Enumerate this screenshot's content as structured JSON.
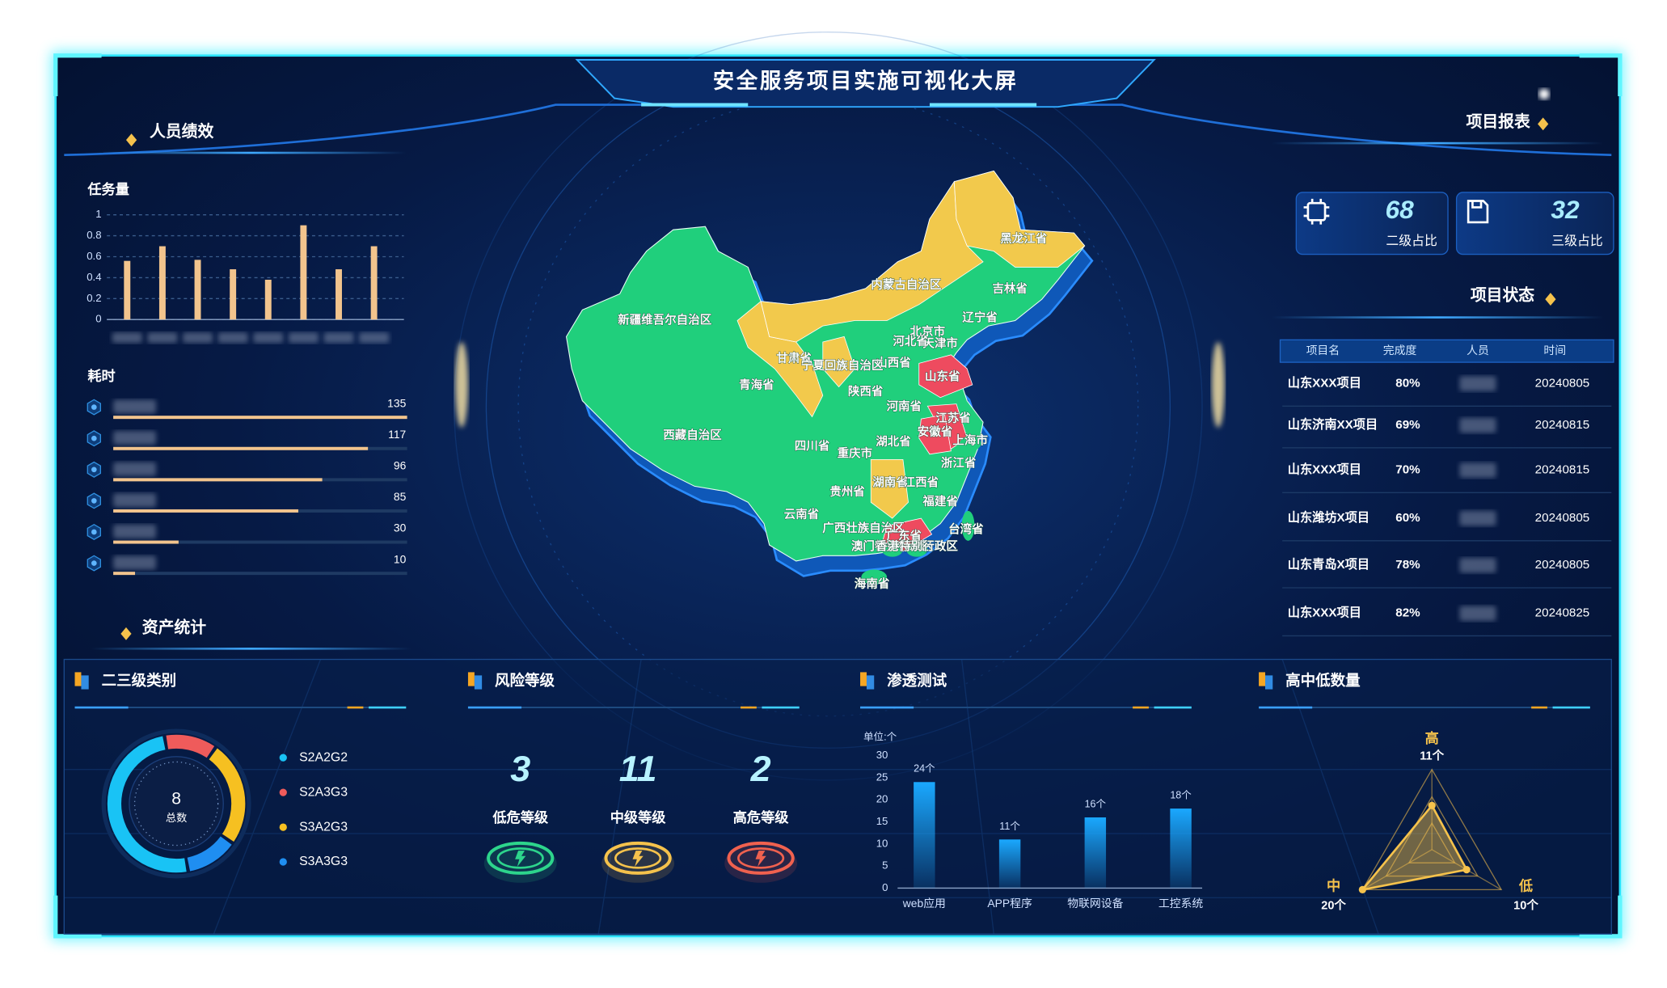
{
  "title": "安全服务项目实施可视化大屏",
  "sections": {
    "personnel": "人员绩效",
    "report": "项目报表",
    "status": "项目状态",
    "assets": "资产统计"
  },
  "report_cards": [
    {
      "value": 68,
      "label": "二级占比"
    },
    {
      "value": 32,
      "label": "三级占比"
    }
  ],
  "table": {
    "columns": [
      "项目名",
      "完成度",
      "人员",
      "时间"
    ],
    "rows": [
      [
        "山东XXX项目",
        "80%",
        null,
        "20240805"
      ],
      [
        "山东济南XX项目",
        "69%",
        null,
        "20240815"
      ],
      [
        "山东XXX项目",
        "70%",
        null,
        "20240815"
      ],
      [
        "山东潍坊X项目",
        "60%",
        null,
        "20240805"
      ],
      [
        "山东青岛X项目",
        "78%",
        null,
        "20240805"
      ],
      [
        "山东XXX项目",
        "82%",
        null,
        "20240825"
      ]
    ]
  },
  "chart_data": [
    {
      "type": "bar",
      "title": "任务量",
      "categories": [
        null,
        null,
        null,
        null,
        null,
        null,
        null,
        null
      ],
      "values": [
        0.56,
        0.7,
        0.57,
        0.48,
        0.38,
        0.9,
        0.48,
        0.7
      ],
      "color": "#f2c48d",
      "ylim": [
        0,
        1
      ],
      "yticks": [
        0,
        0.2,
        0.4,
        0.6,
        0.8,
        1
      ],
      "grid": true
    },
    {
      "type": "hbar",
      "title": "耗时",
      "categories": [
        null,
        null,
        null,
        null,
        null,
        null
      ],
      "values": [
        135,
        117,
        96,
        85,
        30,
        10
      ],
      "color": "#f2c48d"
    },
    {
      "type": "map",
      "regions": [
        {
          "name": "新疆维吾尔自治区",
          "color": "#20cf7c"
        },
        {
          "name": "西藏自治区",
          "color": "#20cf7c"
        },
        {
          "name": "青海省",
          "color": "#20cf7c"
        },
        {
          "name": "甘肃省",
          "color": "#f2c94c"
        },
        {
          "name": "内蒙古自治区",
          "color": "#f2c94c"
        },
        {
          "name": "黑龙江省",
          "color": "#f2c94c"
        },
        {
          "name": "吉林省",
          "color": "#20cf7c"
        },
        {
          "name": "辽宁省",
          "color": "#20cf7c"
        },
        {
          "name": "北京市",
          "color": "#20cf7c"
        },
        {
          "name": "天津市",
          "color": "#20cf7c"
        },
        {
          "name": "河北省",
          "color": "#20cf7c"
        },
        {
          "name": "山西省",
          "color": "#20cf7c"
        },
        {
          "name": "宁夏回族自治区",
          "color": "#f2c94c"
        },
        {
          "name": "陕西省",
          "color": "#20cf7c"
        },
        {
          "name": "山东省",
          "color": "#ee4b5f"
        },
        {
          "name": "河南省",
          "color": "#20cf7c"
        },
        {
          "name": "江苏省",
          "color": "#ee4b5f"
        },
        {
          "name": "安徽省",
          "color": "#ee4b5f"
        },
        {
          "name": "上海市",
          "color": "#20cf7c"
        },
        {
          "name": "湖北省",
          "color": "#20cf7c"
        },
        {
          "name": "四川省",
          "color": "#20cf7c"
        },
        {
          "name": "重庆市",
          "color": "#20cf7c"
        },
        {
          "name": "浙江省",
          "color": "#20cf7c"
        },
        {
          "name": "湖南省",
          "color": "#f2c94c"
        },
        {
          "name": "江西省",
          "color": "#20cf7c"
        },
        {
          "name": "贵州省",
          "color": "#20cf7c"
        },
        {
          "name": "福建省",
          "color": "#20cf7c"
        },
        {
          "name": "云南省",
          "color": "#20cf7c"
        },
        {
          "name": "广西壮族自治区",
          "color": "#20cf7c"
        },
        {
          "name": "广东省",
          "color": "#ee4b5f"
        },
        {
          "name": "台湾省",
          "color": "#20cf7c"
        },
        {
          "name": "澳门特别行政区",
          "color": "#20cf7c"
        },
        {
          "name": "香港特别行政区",
          "color": "#20cf7c"
        },
        {
          "name": "海南省",
          "color": "#20cf7c"
        }
      ]
    },
    {
      "type": "donut",
      "title": "二三级类别",
      "categories": [
        "S2A2G2",
        "S2A3G3",
        "S3A2G3",
        "S3A3G3"
      ],
      "values": [
        4,
        1,
        2,
        1
      ],
      "colors": [
        "#19c3f5",
        "#ef5b5b",
        "#f6c021",
        "#1f8ef1"
      ],
      "total": 8,
      "total_label": "总数"
    },
    {
      "type": "kpi",
      "title": "风险等级",
      "categories": [
        "低危等级",
        "中级等级",
        "高危等级"
      ],
      "values": [
        3,
        11,
        2
      ],
      "colors": [
        "#2dd58c",
        "#f5c24c",
        "#f0614f"
      ]
    },
    {
      "type": "bar",
      "title": "渗透测试",
      "y_label": "单位:个",
      "categories": [
        "web应用",
        "APP程序",
        "物联网设备",
        "工控系统"
      ],
      "values": [
        24,
        11,
        16,
        18
      ],
      "value_labels": [
        "24个",
        "11个",
        "16个",
        "18个"
      ],
      "color": "#1aa8ff",
      "ylim": [
        0,
        30
      ],
      "yticks": [
        0,
        5,
        10,
        15,
        20,
        25,
        30
      ],
      "grid": false
    },
    {
      "type": "radar",
      "title": "高中低数量",
      "categories": [
        "高",
        "中",
        "低"
      ],
      "values": [
        11,
        20,
        10
      ],
      "value_labels": [
        "11个",
        "20个",
        "10个"
      ],
      "color": "#f5c24c"
    }
  ]
}
